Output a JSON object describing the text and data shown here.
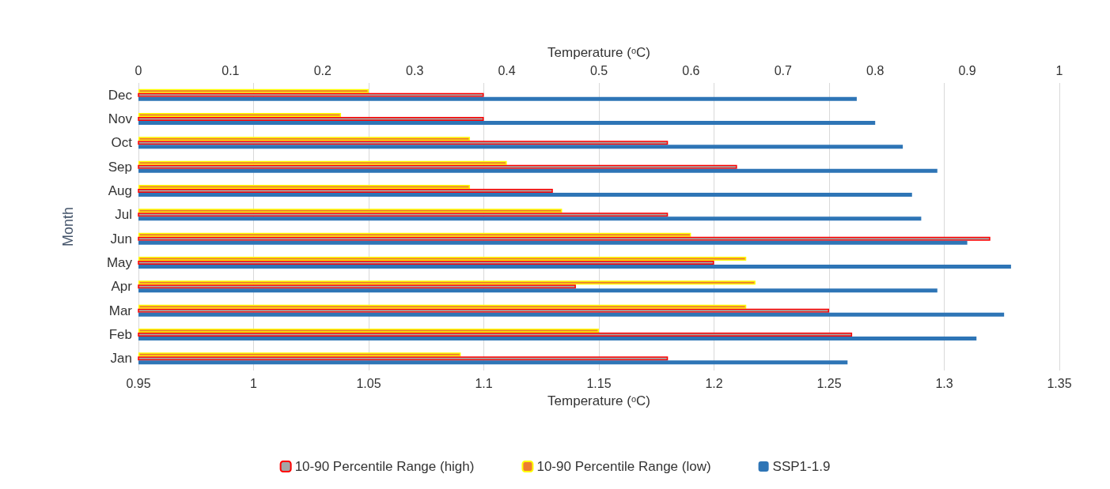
{
  "chart_data": {
    "type": "bar",
    "orientation": "horizontal",
    "xlabel": "Temperature ($^{o}$C)",
    "x2label": "Temperature ($^{o}$C)",
    "ylabel": "Month",
    "categories": [
      "Dec",
      "Nov",
      "Oct",
      "Sep",
      "Aug",
      "Jul",
      "Jun",
      "May",
      "Apr",
      "Mar",
      "Feb",
      "Jan"
    ],
    "xlim": [
      0.95,
      1.35
    ],
    "xticks": [
      0.95,
      1,
      1.05,
      1.1,
      1.15,
      1.2,
      1.25,
      1.3,
      1.35
    ],
    "x2lim": [
      0,
      1
    ],
    "x2ticks": [
      0,
      0.1,
      0.2,
      0.3,
      0.4,
      0.5,
      0.6,
      0.7,
      0.8,
      0.9,
      1
    ],
    "series": [
      {
        "name": "10-90 Percentile Range (high)",
        "color": "#a5a5a5",
        "values": [
          1.1,
          1.1,
          1.18,
          1.21,
          1.13,
          1.18,
          1.32,
          1.2,
          1.14,
          1.25,
          1.26,
          1.18
        ]
      },
      {
        "name": "10-90 Percentile Range (low)",
        "color": "#ed7d31",
        "axis": "x2",
        "values": [
          0.25,
          0.22,
          0.36,
          0.4,
          0.36,
          0.46,
          0.6,
          0.66,
          0.67,
          0.66,
          0.5,
          0.35
        ]
      },
      {
        "name": "SSP1-1.9",
        "color": "#2e75b6",
        "values": [
          1.262,
          1.27,
          1.282,
          1.297,
          1.286,
          1.29,
          1.31,
          1.329,
          1.297,
          1.326,
          1.314,
          1.258
        ]
      }
    ],
    "grid": "x",
    "legend": "bottom"
  }
}
